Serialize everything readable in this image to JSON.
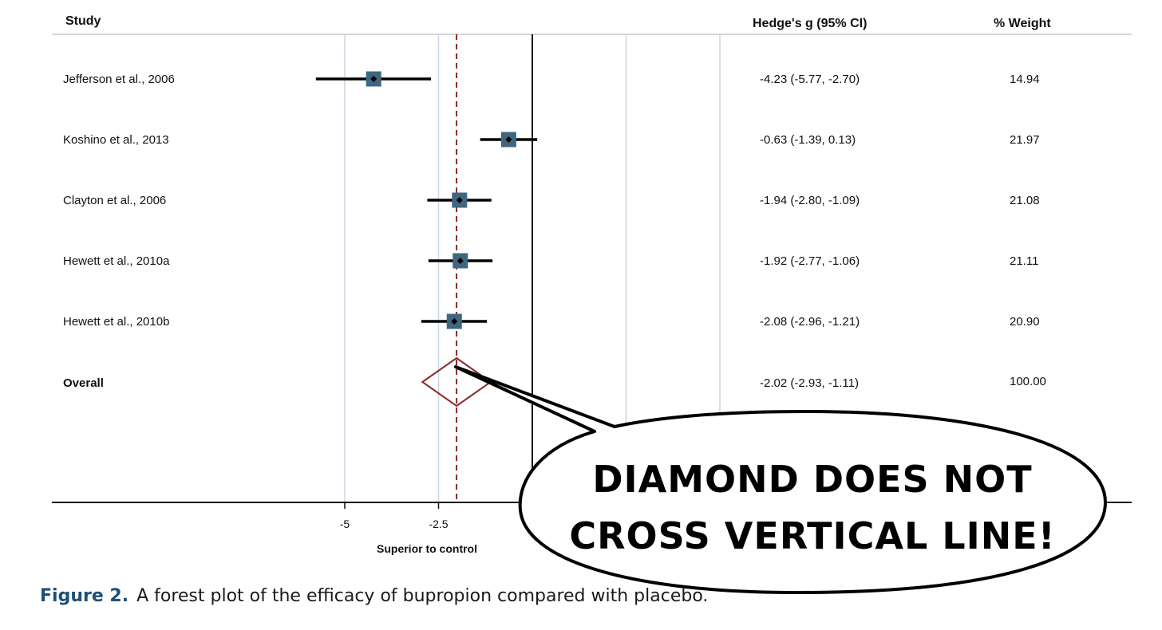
{
  "chart_data": {
    "type": "forest",
    "headers": {
      "study": "Study",
      "effect": "Hedge's g (95% CI)",
      "weight": "% Weight"
    },
    "studies": [
      {
        "name": "Jefferson et al., 2006",
        "g": -4.23,
        "lo": -5.77,
        "hi": -2.7,
        "ci_text": "-4.23 (-5.77, -2.70)",
        "weight": 14.94,
        "weight_text": "14.94"
      },
      {
        "name": "Koshino et al., 2013",
        "g": -0.63,
        "lo": -1.39,
        "hi": 0.13,
        "ci_text": "-0.63 (-1.39, 0.13)",
        "weight": 21.97,
        "weight_text": "21.97"
      },
      {
        "name": "Clayton et al., 2006",
        "g": -1.94,
        "lo": -2.8,
        "hi": -1.09,
        "ci_text": "-1.94 (-2.80, -1.09)",
        "weight": 21.08,
        "weight_text": "21.08"
      },
      {
        "name": "Hewett et al., 2010a",
        "g": -1.92,
        "lo": -2.77,
        "hi": -1.06,
        "ci_text": "-1.92 (-2.77, -1.06)",
        "weight": 21.11,
        "weight_text": "21.11"
      },
      {
        "name": "Hewett et al., 2010b",
        "g": -2.08,
        "lo": -2.96,
        "hi": -1.21,
        "ci_text": "-2.08 (-2.96, -1.21)",
        "weight": 20.9,
        "weight_text": "20.90"
      }
    ],
    "overall": {
      "name": "Overall",
      "g": -2.02,
      "lo": -2.93,
      "hi": -1.11,
      "ci_text": "-2.02 (-2.93, -1.11)",
      "weight_text": "100.00"
    },
    "x_ticks": [
      -5,
      -2.5
    ],
    "x_tick_labels": [
      "-5",
      "-2.5"
    ],
    "null_line": 0,
    "grid_lines": [
      -5,
      -2.5,
      2.5,
      5
    ],
    "x_note": "Superior to control",
    "colors": {
      "box": "#3f6680",
      "diamond": "#8b2a2a",
      "pooled_line": "#8b2a2a",
      "grid": "#c9d6e3"
    }
  },
  "callout": {
    "line1": "DIAMOND DOES NOT",
    "line2": "CROSS VERTICAL LINE!"
  },
  "caption": {
    "label": "Figure 2.",
    "text": "A forest plot of the efficacy of bupropion compared with placebo."
  }
}
